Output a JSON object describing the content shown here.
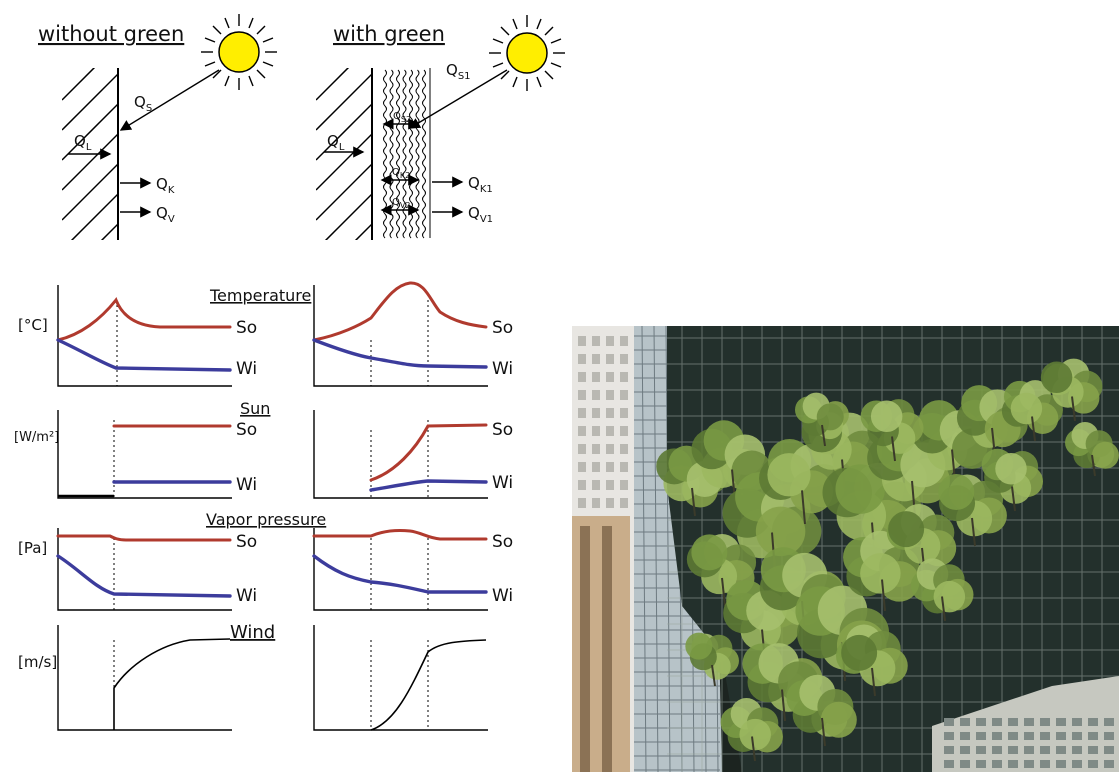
{
  "panels": {
    "without": {
      "title": "without green"
    },
    "with": {
      "title": "with green"
    }
  },
  "fluxes": {
    "solar": "Q",
    "solar_sub": "S",
    "solar1_sub": "S1",
    "solar2_sub": "S2",
    "long": "Q",
    "long_sub": "L",
    "conv": "Q",
    "conv_sub": "K",
    "conv1_sub": "K1",
    "conv2_sub": "K2",
    "vap": "Q",
    "vap_sub": "V",
    "vap1_sub": "V1",
    "vap2_sub": "V2"
  },
  "charts": {
    "temperature": {
      "title": "Temperature",
      "unit": "[°C]"
    },
    "sun": {
      "title": "Sun",
      "unit": "[W/m²]"
    },
    "vapor": {
      "title": "Vapor pressure",
      "unit": "[Pa]"
    },
    "wind": {
      "title": "Wind",
      "unit": "[m/s]"
    }
  },
  "series": {
    "so": "So",
    "wi": "Wi"
  },
  "colors": {
    "so": "#b03a2e",
    "wi": "#3c3c9c",
    "sun_fill": "#ffee00"
  },
  "photo": {
    "subject": "glass high-rise with trees on stepped terraces"
  }
}
